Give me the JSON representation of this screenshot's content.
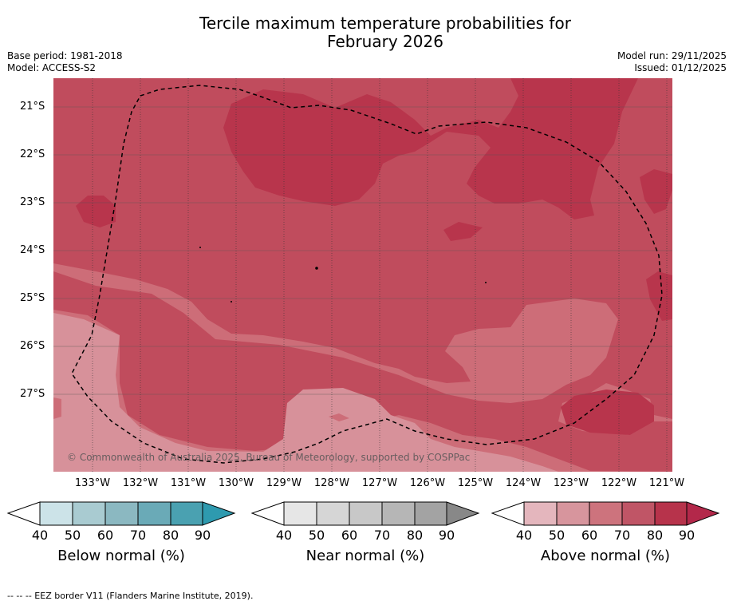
{
  "title_line1": "Tercile maximum temperature probabilities for",
  "title_line2": "February 2026",
  "base_period": "Base period: 1981-2018",
  "model": "Model: ACCESS-S2",
  "model_run": "Model run: 29/11/2025",
  "issued": "Issued: 01/12/2025",
  "map": {
    "lat_labels": [
      "21°S",
      "22°S",
      "23°S",
      "24°S",
      "25°S",
      "26°S",
      "27°S"
    ],
    "lon_labels": [
      "133°W",
      "132°W",
      "131°W",
      "130°W",
      "129°W",
      "128°W",
      "127°W",
      "126°W",
      "125°W",
      "124°W",
      "123°W",
      "122°W",
      "121°W"
    ],
    "copyright": "© Commonwealth of Australia 2025, Bureau of Meteorology, supported by COSPPac",
    "colors": {
      "above_50": "#d7919a",
      "above_60": "#cd6d78",
      "above_70": "#c04c5d",
      "above_80": "#b8354c"
    }
  },
  "legends": [
    {
      "title": "Below normal (%)",
      "ticks": [
        "40",
        "50",
        "60",
        "70",
        "80",
        "90"
      ],
      "colors": [
        "#cce3e8",
        "#a9cbd1",
        "#8bb8c1",
        "#6aaab7",
        "#4aa1b1",
        "#2e9aaf"
      ]
    },
    {
      "title": "Near normal (%)",
      "ticks": [
        "40",
        "50",
        "60",
        "70",
        "80",
        "90"
      ],
      "colors": [
        "#e6e6e6",
        "#d6d6d6",
        "#c8c8c8",
        "#b6b6b6",
        "#a3a3a3",
        "#888888"
      ]
    },
    {
      "title": "Above normal (%)",
      "ticks": [
        "40",
        "50",
        "60",
        "70",
        "80",
        "90"
      ],
      "colors": [
        "#e4b6bd",
        "#d7959d",
        "#cd737d",
        "#c05566",
        "#b7334b",
        "#b3284a"
      ]
    }
  ],
  "footer": "--  --  -- EEZ border V11 (Flanders Marine Institute, 2019)."
}
